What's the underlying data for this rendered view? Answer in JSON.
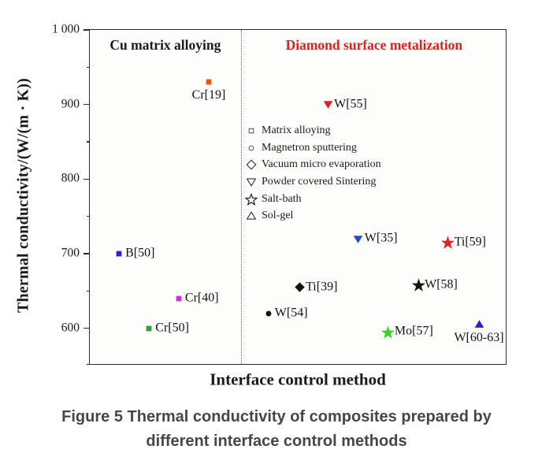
{
  "figure": {
    "caption_line1": "Figure 5 Thermal conductivity of composites prepared by",
    "caption_line2": "different interface control methods"
  },
  "chart_data": {
    "type": "scatter",
    "title": "",
    "xlabel": "Interface control method",
    "ylabel": "Thermal conductivity/(W/(m · K))",
    "ylim": [
      550,
      1000
    ],
    "yticks": [
      600,
      700,
      800,
      900,
      1000
    ],
    "ytick_labels": [
      "600",
      "700",
      "800",
      "900",
      "1 000"
    ],
    "minor_yticks": [
      550,
      650,
      750,
      850,
      950
    ],
    "grid": false,
    "divider_x": 0.362,
    "regions": [
      {
        "label": "Cu matrix alloying",
        "color": "#1a1a1a",
        "x_center": 0.181
      },
      {
        "label": "Diamond surface metalization",
        "color": "#e01f1f",
        "x_center": 0.681
      }
    ],
    "legend": {
      "position": "inside-left-middle",
      "entries": [
        {
          "marker": "square",
          "label": "Matrix alloying"
        },
        {
          "marker": "circle",
          "label": "Magnetron sputtering"
        },
        {
          "marker": "diamond",
          "label": "Vacuum micro evaporation"
        },
        {
          "marker": "triangle-down",
          "label": "Powder covered Sintering"
        },
        {
          "marker": "star",
          "label": "Salt-bath"
        },
        {
          "marker": "triangle-up",
          "label": "Sol-gel"
        }
      ]
    },
    "points": [
      {
        "label": "B[50]",
        "method": "Matrix alloying",
        "marker": "square",
        "color": "#2222e0",
        "x": 0.07,
        "value": 700,
        "label_side": "right"
      },
      {
        "label": "Cr[50]",
        "method": "Matrix alloying",
        "marker": "square",
        "color": "#2ca52c",
        "x": 0.142,
        "value": 600,
        "label_side": "right"
      },
      {
        "label": "Cr[40]",
        "method": "Matrix alloying",
        "marker": "square",
        "color": "#cf2fd8",
        "x": 0.213,
        "value": 640,
        "label_side": "right"
      },
      {
        "label": "Cr[19]",
        "method": "Matrix alloying",
        "marker": "square",
        "color": "#f3500e",
        "x": 0.285,
        "value": 930,
        "label_side": "below"
      },
      {
        "label": "W[54]",
        "method": "Magnetron sputtering",
        "marker": "circle",
        "color": "#111111",
        "x": 0.428,
        "value": 620,
        "label_side": "right"
      },
      {
        "label": "Ti[39]",
        "method": "Vacuum micro evaporation",
        "marker": "diamond",
        "color": "#111111",
        "x": 0.502,
        "value": 655,
        "label_side": "right"
      },
      {
        "label": "W[55]",
        "method": "Powder covered Sintering",
        "marker": "triangle-down",
        "color": "#e51c1c",
        "x": 0.57,
        "value": 900,
        "label_side": "right"
      },
      {
        "label": "W[35]",
        "method": "Powder covered Sintering",
        "marker": "triangle-down",
        "color": "#2546dd",
        "x": 0.643,
        "value": 720,
        "label_side": "right"
      },
      {
        "label": "Mo[57]",
        "method": "Salt-bath",
        "marker": "star",
        "color": "#3fd024",
        "x": 0.715,
        "value": 595,
        "label_side": "right"
      },
      {
        "label": "W[58]",
        "method": "Salt-bath",
        "marker": "star",
        "color": "#111111",
        "x": 0.787,
        "value": 658,
        "label_side": "right"
      },
      {
        "label": "Ti[59]",
        "method": "Salt-bath",
        "marker": "star",
        "color": "#e02222",
        "x": 0.858,
        "value": 715,
        "label_side": "right"
      },
      {
        "label": "W[60-63]",
        "method": "Sol-gel",
        "marker": "triangle-up",
        "color": "#2121cf",
        "x": 0.932,
        "value": 605,
        "label_side": "below"
      }
    ]
  }
}
